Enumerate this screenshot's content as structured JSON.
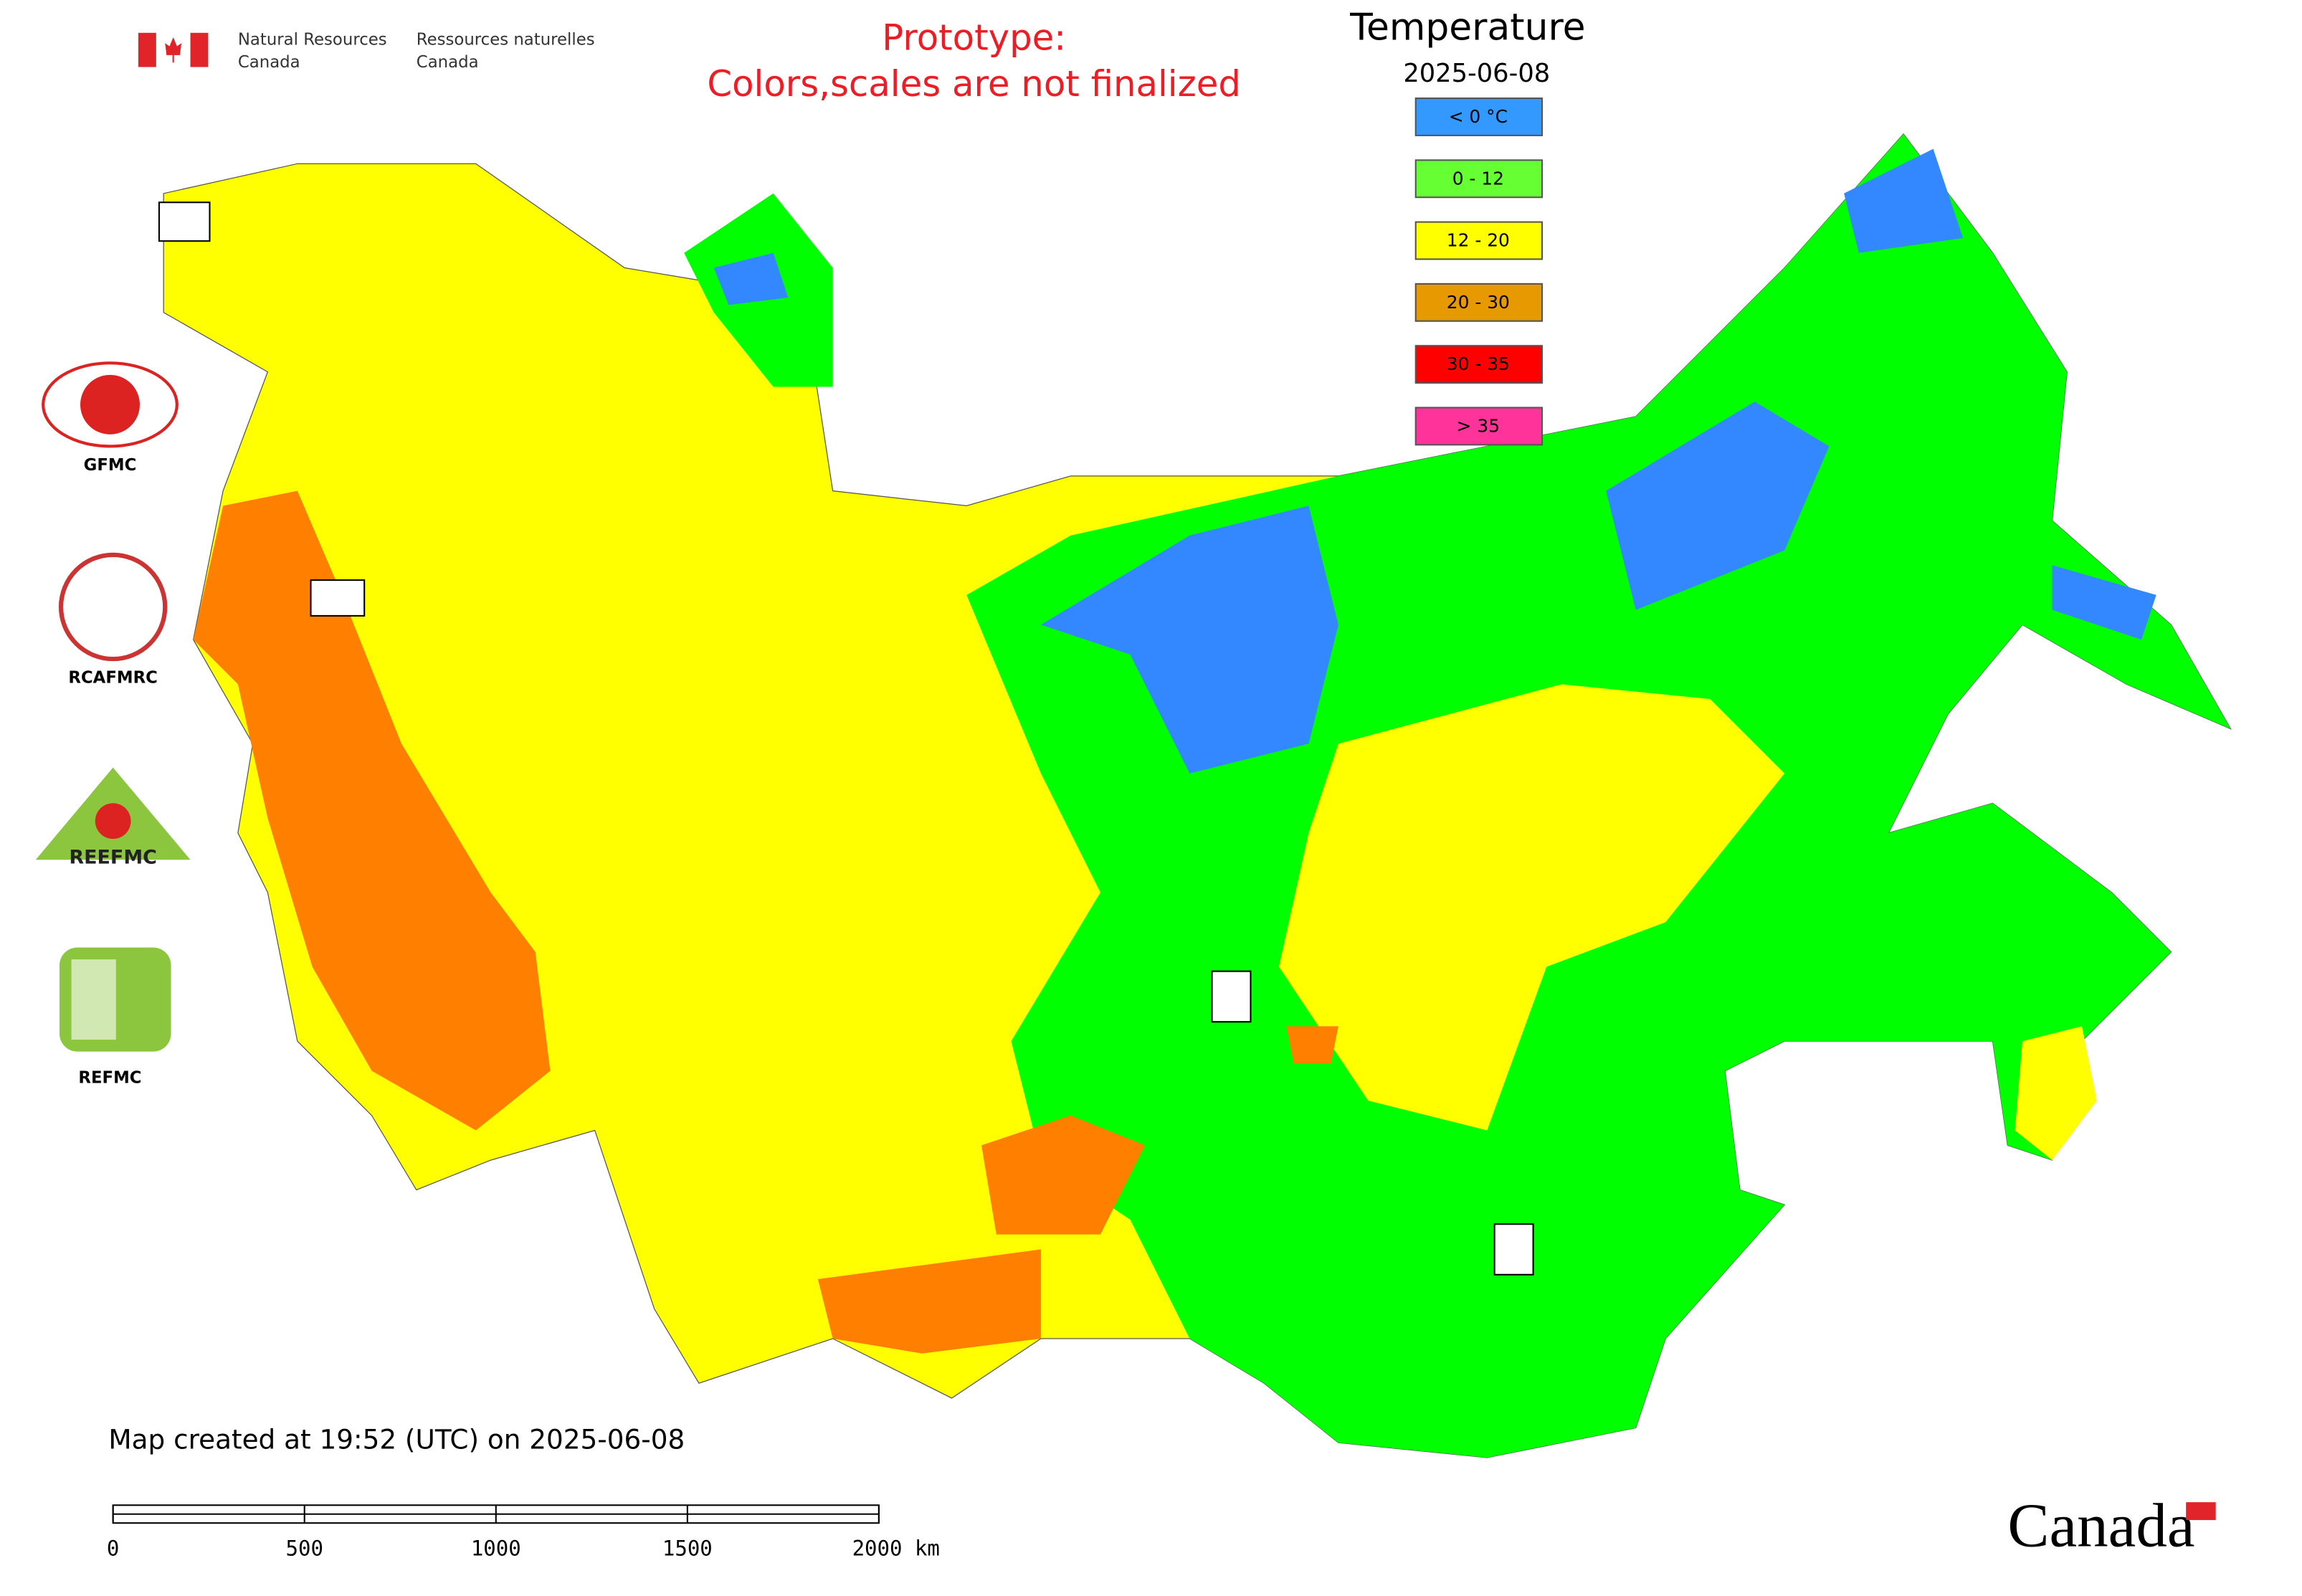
{
  "header": {
    "agency_en_line1": "Natural Resources",
    "agency_en_line2": "Canada",
    "agency_fr_line1": "Ressources naturelles",
    "agency_fr_line2": "Canada"
  },
  "notice": {
    "line1": "Prototype:",
    "line2": "Colors,scales are not finalized"
  },
  "legend": {
    "title": "Temperature",
    "date": "2025-06-08",
    "items": [
      {
        "label": "< 0 °C",
        "color": "#3399ff"
      },
      {
        "label": "0 - 12",
        "color": "#66ff33"
      },
      {
        "label": "12 - 20",
        "color": "#ffff00"
      },
      {
        "label": "20 - 30",
        "color": "#e69900"
      },
      {
        "label": "30 - 35",
        "color": "#ff0000"
      },
      {
        "label": "> 35",
        "color": "#ff3399"
      }
    ]
  },
  "logos": [
    "GFMC",
    "RCAFMRC",
    "REEFMC",
    "REFMC"
  ],
  "footer": {
    "created": "Map created at 19:52 (UTC) on 2025-06-08",
    "scale_labels": [
      "0",
      "500",
      "1000",
      "1500",
      "2000 km"
    ],
    "wordmark": "Canada"
  }
}
